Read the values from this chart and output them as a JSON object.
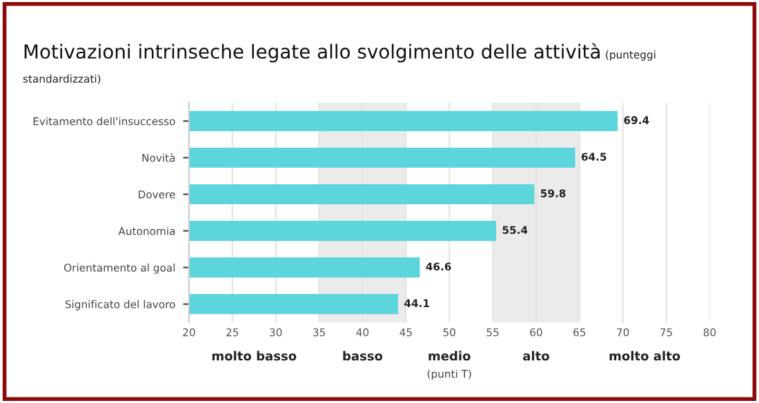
{
  "chart_data": {
    "type": "bar",
    "orientation": "horizontal",
    "title": "Motivazioni intrinseche legate allo svolgimento delle attività",
    "subtitle": "(punteggi standardizzati)",
    "xlabel": "(punti T)",
    "categories": [
      "Evitamento dell'insuccesso",
      "Novità",
      "Dovere",
      "Autonomia",
      "Orientamento al goal",
      "Significato del lavoro"
    ],
    "values": [
      69.4,
      64.5,
      59.8,
      55.4,
      46.6,
      44.1
    ],
    "color": "#5dd5dc",
    "data_labels": true,
    "xlim": [
      20,
      80
    ],
    "xticks": [
      20,
      25,
      30,
      35,
      40,
      45,
      50,
      55,
      60,
      65,
      70,
      75,
      80
    ],
    "grid": "x",
    "annotations": [
      "molto basso",
      "medio",
      "molto alto"
    ],
    "bands": [
      {
        "axis": "x",
        "from": 35,
        "to": 45,
        "label": "basso",
        "color": "#ebebeb"
      },
      {
        "axis": "x",
        "from": 55,
        "to": 65,
        "label": "alto",
        "color": "#ebebeb"
      }
    ]
  }
}
